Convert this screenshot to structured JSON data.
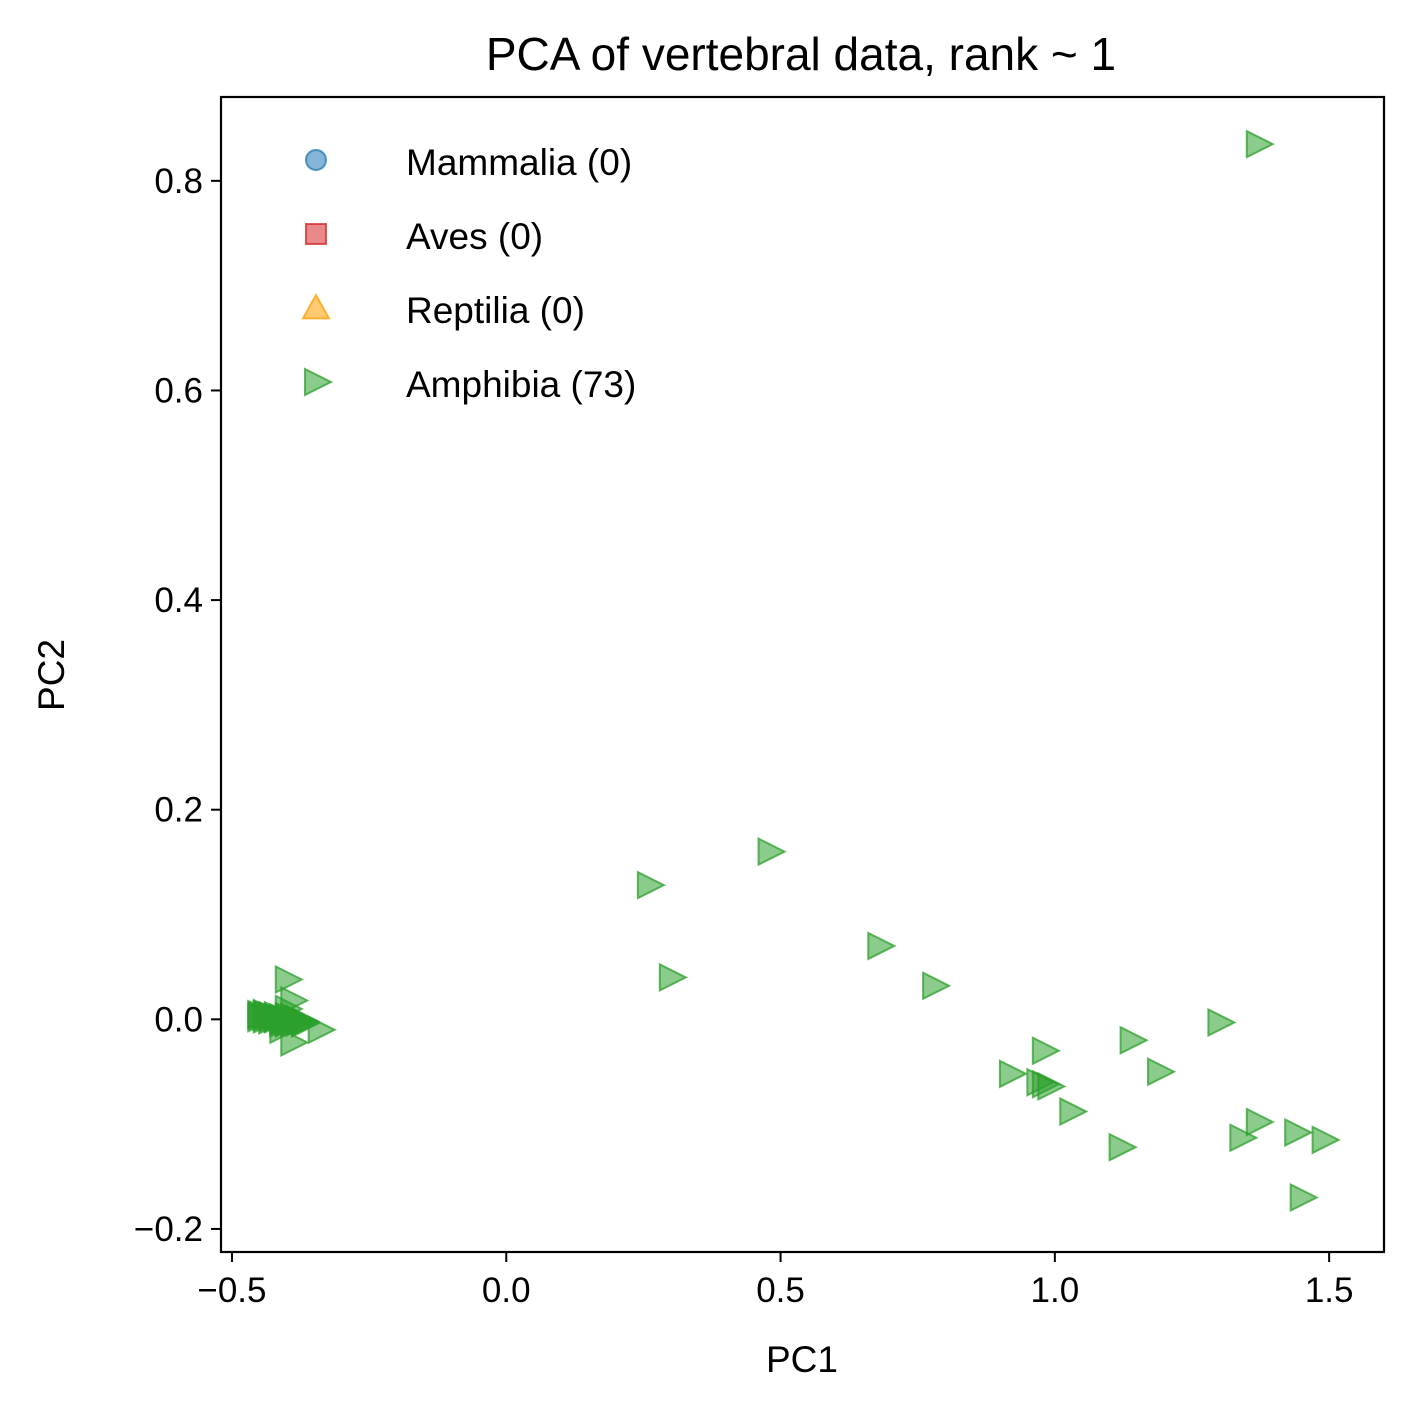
{
  "chart_data": {
    "type": "scatter",
    "title": "PCA of vertebral data, rank ~ 1",
    "xlabel": "PC1",
    "ylabel": "PC2",
    "xlim": [
      -0.52,
      1.6
    ],
    "ylim": [
      -0.222,
      0.88
    ],
    "x_ticks": [
      -0.5,
      0.0,
      0.5,
      1.0,
      1.5
    ],
    "x_tick_labels": [
      "−0.5",
      "0.0",
      "0.5",
      "1.0",
      "1.5"
    ],
    "y_ticks": [
      -0.2,
      0.0,
      0.2,
      0.4,
      0.6,
      0.8
    ],
    "y_tick_labels": [
      "−0.2",
      "0.0",
      "0.2",
      "0.4",
      "0.6",
      "0.8"
    ],
    "grid": false,
    "legend_position": "top-left",
    "series": [
      {
        "name": "Mammalia (0)",
        "marker": "circle",
        "color": "#1f77b4",
        "x": [],
        "y": []
      },
      {
        "name": "Aves (0)",
        "marker": "square",
        "color": "#d62728",
        "x": [],
        "y": []
      },
      {
        "name": "Reptilia (0)",
        "marker": "triangle-up",
        "color": "#ff9f00",
        "x": [],
        "y": []
      },
      {
        "name": "Amphibia (73)",
        "marker": "triangle-right",
        "color": "#2ca02c",
        "x": [
          1.37,
          0.48,
          0.26,
          0.3,
          0.68,
          0.78,
          1.3,
          0.98,
          1.14,
          1.19,
          0.92,
          0.98,
          1.03,
          1.34,
          1.37,
          1.44,
          1.49,
          1.12,
          1.45,
          -0.45,
          -0.44,
          -0.43,
          -0.42,
          -0.41,
          -0.4,
          -0.39,
          -0.38,
          -0.37,
          -0.4,
          -0.39,
          -0.39,
          -0.4,
          -0.41,
          -0.38,
          -0.34,
          -0.45,
          -0.44,
          -0.43,
          -0.42,
          -0.41,
          -0.4,
          -0.39,
          -0.38,
          -0.37,
          -0.44,
          -0.43,
          -0.42,
          -0.41,
          -0.4,
          -0.39,
          -0.38,
          -0.45,
          -0.44,
          -0.43,
          -0.42,
          -0.41,
          -0.4,
          -0.39,
          -0.38,
          -0.37,
          -0.45,
          -0.44,
          -0.43,
          -0.42,
          -0.41,
          -0.4,
          -0.39,
          -0.42,
          -0.41,
          -0.4,
          -0.39,
          0.97,
          0.99
        ],
        "y": [
          0.835,
          0.16,
          0.128,
          0.04,
          0.07,
          0.032,
          -0.003,
          -0.03,
          -0.02,
          -0.05,
          -0.052,
          -0.062,
          -0.088,
          -0.113,
          -0.098,
          -0.108,
          -0.115,
          -0.122,
          -0.17,
          0.004,
          0.005,
          0.003,
          0.002,
          0.001,
          0.0,
          -0.001,
          -0.002,
          -0.003,
          0.038,
          0.018,
          -0.022,
          0.01,
          -0.01,
          0.0,
          -0.01,
          0.003,
          0.002,
          0.001,
          0.0,
          -0.001,
          -0.002,
          -0.003,
          0.0,
          -0.004,
          0.006,
          0.004,
          0.002,
          -0.002,
          -0.004,
          0.002,
          -0.001,
          0.005,
          0.004,
          0.003,
          0.002,
          0.001,
          0.003,
          0.001,
          -0.003,
          -0.002,
          0.001,
          0.0,
          -0.001,
          0.001,
          0.002,
          -0.003,
          0.0,
          0.004,
          -0.004,
          0.002,
          -0.002,
          -0.06,
          -0.064
        ]
      }
    ]
  }
}
